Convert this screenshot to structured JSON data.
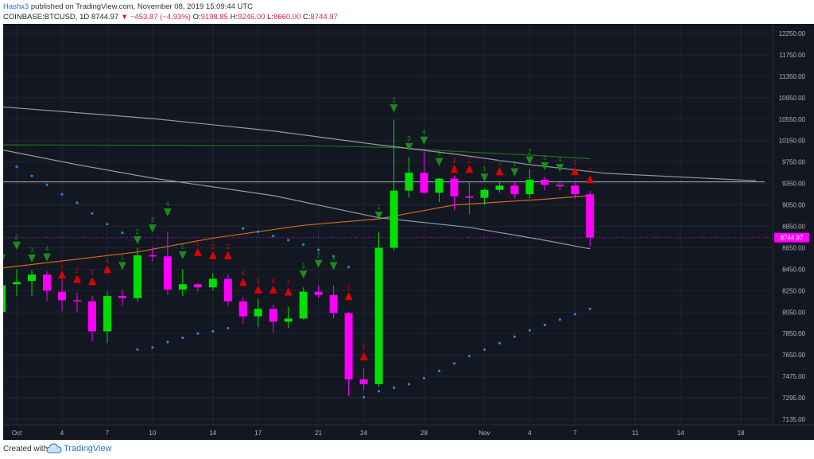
{
  "header": {
    "author": "Hashx3",
    "published_text": "published on TradingView.com, November 08, 2019 15:09:44 UTC",
    "symbol": "COINBASE:BTCUSD, 1D",
    "last": "8744.97",
    "change": "−453.87 (−4.93%)",
    "open_label": "O:",
    "open": "9198.85",
    "high_label": "H:",
    "high": "9246.00",
    "low_label": "L:",
    "low": "8660.00",
    "close_label": "C:",
    "close": "8744.97"
  },
  "footer": {
    "created_with": "Created with",
    "brand": "TradingView"
  },
  "colors": {
    "background": "#131722",
    "up": "#00e000",
    "down": "#ff00ff",
    "grid": "#1f2430",
    "axis_text": "#b2b5be",
    "signal_up": "#1a8c1a",
    "signal_down": "#e00000",
    "price_tag": "#ff00ff",
    "sar": "#2f7fd8",
    "ma_orange": "#d2691e",
    "ma_green": "#1e6e1e",
    "ma_gray": "#9598a1"
  },
  "chart_data": {
    "type": "candlestick",
    "price_label": "8744.97",
    "y_ticks": [
      12250,
      11750,
      11350,
      10950,
      10550,
      10150,
      9750,
      9350,
      9050,
      8850,
      8650,
      8450,
      8250,
      8050,
      7850,
      7650,
      7475,
      7295,
      7135
    ],
    "y_tick_labels": [
      "12250.00",
      "11750.00",
      "11350.00",
      "10950.00",
      "10550.00",
      "10150.00",
      "9750.00",
      "9350.00",
      "9050.00",
      "8850.00",
      "8650.00",
      "8450.00",
      "8250.00",
      "8050.00",
      "7850.00",
      "7650.00",
      "7475.00",
      "7295.00",
      "7135.00"
    ],
    "x_ticks": [
      {
        "day": 1,
        "label": "Oct"
      },
      {
        "day": 4,
        "label": "4"
      },
      {
        "day": 7,
        "label": "7"
      },
      {
        "day": 10,
        "label": "10"
      },
      {
        "day": 14,
        "label": "14"
      },
      {
        "day": 17,
        "label": "17"
      },
      {
        "day": 21,
        "label": "21"
      },
      {
        "day": 24,
        "label": "24"
      },
      {
        "day": 28,
        "label": "28"
      },
      {
        "day": 32,
        "label": "Nov"
      },
      {
        "day": 35,
        "label": "4"
      },
      {
        "day": 38,
        "label": "7"
      },
      {
        "day": 42,
        "label": "11"
      },
      {
        "day": 45,
        "label": "14"
      },
      {
        "day": 49,
        "label": "18"
      }
    ],
    "x_range": [
      0.1,
      51.0
    ],
    "candles": [
      {
        "day": 0,
        "o": 8050,
        "h": 8350,
        "l": 7700,
        "c": 8300
      },
      {
        "day": 1,
        "o": 8310,
        "h": 8450,
        "l": 8200,
        "c": 8330
      },
      {
        "day": 2,
        "o": 8340,
        "h": 8440,
        "l": 8200,
        "c": 8400
      },
      {
        "day": 3,
        "o": 8400,
        "h": 8430,
        "l": 8150,
        "c": 8250
      },
      {
        "day": 4,
        "o": 8240,
        "h": 8360,
        "l": 8060,
        "c": 8160
      },
      {
        "day": 5,
        "o": 8160,
        "h": 8230,
        "l": 8050,
        "c": 8150
      },
      {
        "day": 6,
        "o": 8150,
        "h": 8200,
        "l": 7780,
        "c": 7870
      },
      {
        "day": 7,
        "o": 7870,
        "h": 8240,
        "l": 7760,
        "c": 8200
      },
      {
        "day": 8,
        "o": 8200,
        "h": 8250,
        "l": 8110,
        "c": 8180
      },
      {
        "day": 9,
        "o": 8180,
        "h": 8650,
        "l": 8150,
        "c": 8580
      },
      {
        "day": 10,
        "o": 8580,
        "h": 8660,
        "l": 8520,
        "c": 8570
      },
      {
        "day": 11,
        "o": 8570,
        "h": 8800,
        "l": 8210,
        "c": 8260
      },
      {
        "day": 12,
        "o": 8260,
        "h": 8450,
        "l": 8200,
        "c": 8310
      },
      {
        "day": 13,
        "o": 8310,
        "h": 8320,
        "l": 8240,
        "c": 8280
      },
      {
        "day": 14,
        "o": 8280,
        "h": 8410,
        "l": 8250,
        "c": 8360
      },
      {
        "day": 15,
        "o": 8360,
        "h": 8400,
        "l": 8110,
        "c": 8150
      },
      {
        "day": 16,
        "o": 8150,
        "h": 8190,
        "l": 7940,
        "c": 8010
      },
      {
        "day": 17,
        "o": 8010,
        "h": 8170,
        "l": 7910,
        "c": 8080
      },
      {
        "day": 18,
        "o": 8080,
        "h": 8120,
        "l": 7860,
        "c": 7960
      },
      {
        "day": 19,
        "o": 7960,
        "h": 8100,
        "l": 7900,
        "c": 7990
      },
      {
        "day": 20,
        "o": 7990,
        "h": 8280,
        "l": 7980,
        "c": 8240
      },
      {
        "day": 21,
        "o": 8240,
        "h": 8300,
        "l": 8180,
        "c": 8210
      },
      {
        "day": 22,
        "o": 8210,
        "h": 8300,
        "l": 7990,
        "c": 8040
      },
      {
        "day": 23,
        "o": 8040,
        "h": 8050,
        "l": 7310,
        "c": 7450
      },
      {
        "day": 24,
        "o": 7450,
        "h": 7540,
        "l": 7360,
        "c": 7410
      },
      {
        "day": 25,
        "o": 7410,
        "h": 8800,
        "l": 7390,
        "c": 8650
      },
      {
        "day": 26,
        "o": 8650,
        "h": 10540,
        "l": 8620,
        "c": 9250
      },
      {
        "day": 27,
        "o": 9250,
        "h": 9850,
        "l": 9150,
        "c": 9550
      },
      {
        "day": 28,
        "o": 9550,
        "h": 9950,
        "l": 9200,
        "c": 9220
      },
      {
        "day": 29,
        "o": 9220,
        "h": 9450,
        "l": 9090,
        "c": 9440
      },
      {
        "day": 30,
        "o": 9440,
        "h": 9500,
        "l": 9000,
        "c": 9170
      },
      {
        "day": 31,
        "o": 9170,
        "h": 9390,
        "l": 8960,
        "c": 9150
      },
      {
        "day": 32,
        "o": 9150,
        "h": 9280,
        "l": 9050,
        "c": 9260
      },
      {
        "day": 33,
        "o": 9260,
        "h": 9370,
        "l": 9220,
        "c": 9320
      },
      {
        "day": 34,
        "o": 9320,
        "h": 9380,
        "l": 9140,
        "c": 9200
      },
      {
        "day": 35,
        "o": 9200,
        "h": 9620,
        "l": 9140,
        "c": 9420
      },
      {
        "day": 36,
        "o": 9420,
        "h": 9480,
        "l": 9250,
        "c": 9330
      },
      {
        "day": 37,
        "o": 9330,
        "h": 9370,
        "l": 9260,
        "c": 9310
      },
      {
        "day": 38,
        "o": 9320,
        "h": 9400,
        "l": 9130,
        "c": 9200
      },
      {
        "day": 39,
        "o": 9198.85,
        "h": 9246,
        "l": 8660,
        "c": 8744.97
      }
    ],
    "signals": [
      {
        "day": 0,
        "dir": "down",
        "price": 8550,
        "label": "1"
      },
      {
        "day": 1,
        "dir": "down",
        "price": 8670,
        "label": "2"
      },
      {
        "day": 2,
        "dir": "down",
        "price": 8550,
        "label": "3"
      },
      {
        "day": 3,
        "dir": "down",
        "price": 8560,
        "label": "4"
      },
      {
        "day": 4,
        "dir": "up",
        "price": 8400,
        "label": "1"
      },
      {
        "day": 5,
        "dir": "up",
        "price": 8360,
        "label": "2"
      },
      {
        "day": 6,
        "dir": "up",
        "price": 8340,
        "label": "3"
      },
      {
        "day": 7,
        "dir": "up",
        "price": 8450,
        "label": "4"
      },
      {
        "day": 8,
        "dir": "down",
        "price": 8480,
        "label": "1"
      },
      {
        "day": 9,
        "dir": "down",
        "price": 8720,
        "label": "2"
      },
      {
        "day": 10,
        "dir": "down",
        "price": 8830,
        "label": "3"
      },
      {
        "day": 11,
        "dir": "down",
        "price": 8980,
        "label": "4"
      },
      {
        "day": 12,
        "dir": "down",
        "price": 8580,
        "label": "5"
      },
      {
        "day": 13,
        "dir": "up",
        "price": 8610,
        "label": "1"
      },
      {
        "day": 14,
        "dir": "up",
        "price": 8580,
        "label": "2"
      },
      {
        "day": 15,
        "dir": "up",
        "price": 8580,
        "label": "3"
      },
      {
        "day": 16,
        "dir": "up",
        "price": 8330,
        "label": "4"
      },
      {
        "day": 17,
        "dir": "up",
        "price": 8260,
        "label": "5"
      },
      {
        "day": 18,
        "dir": "up",
        "price": 8260,
        "label": "6"
      },
      {
        "day": 19,
        "dir": "up",
        "price": 8240,
        "label": "7"
      },
      {
        "day": 20,
        "dir": "down",
        "price": 8400,
        "label": "1"
      },
      {
        "day": 21,
        "dir": "down",
        "price": 8500,
        "label": "2"
      },
      {
        "day": 22,
        "dir": "down",
        "price": 8480,
        "label": "3"
      },
      {
        "day": 23,
        "dir": "up",
        "price": 8200,
        "label": "1"
      },
      {
        "day": 24,
        "dir": "up",
        "price": 7640,
        "label": "2"
      },
      {
        "day": 25,
        "dir": "down",
        "price": 8950,
        "label": "1"
      },
      {
        "day": 26,
        "dir": "down",
        "price": 10750,
        "label": "2"
      },
      {
        "day": 27,
        "dir": "down",
        "price": 10030,
        "label": "3"
      },
      {
        "day": 28,
        "dir": "down",
        "price": 10150,
        "label": "4"
      },
      {
        "day": 29,
        "dir": "down",
        "price": 9750,
        "label": "5"
      },
      {
        "day": 30,
        "dir": "up",
        "price": 9620,
        "label": "1"
      },
      {
        "day": 31,
        "dir": "up",
        "price": 9620,
        "label": "2"
      },
      {
        "day": 32,
        "dir": "down",
        "price": 9460,
        "label": "1"
      },
      {
        "day": 33,
        "dir": "up",
        "price": 9580,
        "label": "1"
      },
      {
        "day": 34,
        "dir": "down",
        "price": 9560,
        "label": "1"
      },
      {
        "day": 35,
        "dir": "down",
        "price": 9780,
        "label": "2"
      },
      {
        "day": 36,
        "dir": "down",
        "price": 9670,
        "label": "3"
      },
      {
        "day": 37,
        "dir": "down",
        "price": 9640,
        "label": "4"
      },
      {
        "day": 38,
        "dir": "up",
        "price": 9580,
        "label": "1"
      },
      {
        "day": 39,
        "dir": "up",
        "price": 9430,
        "label": "2"
      }
    ],
    "sar": [
      {
        "day": 0,
        "price": 9830
      },
      {
        "day": 1,
        "price": 9660
      },
      {
        "day": 2,
        "price": 9490
      },
      {
        "day": 3,
        "price": 9330
      },
      {
        "day": 4,
        "price": 9200
      },
      {
        "day": 5,
        "price": 9080
      },
      {
        "day": 6,
        "price": 8970
      },
      {
        "day": 7,
        "price": 8870
      },
      {
        "day": 8,
        "price": 8790
      },
      {
        "day": 9,
        "price": 7700
      },
      {
        "day": 10,
        "price": 7720
      },
      {
        "day": 11,
        "price": 7770
      },
      {
        "day": 12,
        "price": 7810
      },
      {
        "day": 13,
        "price": 7850
      },
      {
        "day": 14,
        "price": 7870
      },
      {
        "day": 15,
        "price": 7900
      },
      {
        "day": 16,
        "price": 8830
      },
      {
        "day": 17,
        "price": 8800
      },
      {
        "day": 18,
        "price": 8760
      },
      {
        "day": 19,
        "price": 8720
      },
      {
        "day": 20,
        "price": 8680
      },
      {
        "day": 21,
        "price": 8630
      },
      {
        "day": 22,
        "price": 8570
      },
      {
        "day": 23,
        "price": 8470
      },
      {
        "day": 24,
        "price": 7300
      },
      {
        "day": 25,
        "price": 7350
      },
      {
        "day": 26,
        "price": 7380
      },
      {
        "day": 27,
        "price": 7410
      },
      {
        "day": 28,
        "price": 7460
      },
      {
        "day": 29,
        "price": 7520
      },
      {
        "day": 30,
        "price": 7580
      },
      {
        "day": 31,
        "price": 7640
      },
      {
        "day": 32,
        "price": 7700
      },
      {
        "day": 33,
        "price": 7760
      },
      {
        "day": 34,
        "price": 7820
      },
      {
        "day": 35,
        "price": 7880
      },
      {
        "day": 36,
        "price": 7930
      },
      {
        "day": 37,
        "price": 7980
      },
      {
        "day": 38,
        "price": 8030
      },
      {
        "day": 39,
        "price": 8080
      }
    ],
    "moving_averages": [
      {
        "color": "orange",
        "points": [
          [
            0,
            8460
          ],
          [
            9,
            8610
          ],
          [
            14,
            8740
          ],
          [
            20,
            8860
          ],
          [
            25,
            8920
          ],
          [
            30,
            9050
          ],
          [
            36,
            9130
          ],
          [
            39,
            9180
          ]
        ]
      },
      {
        "color": "green",
        "points": [
          [
            0,
            10070
          ],
          [
            14,
            10060
          ],
          [
            20,
            10060
          ],
          [
            26,
            10020
          ],
          [
            30,
            9950
          ],
          [
            35,
            9880
          ],
          [
            39,
            9810
          ]
        ]
      },
      {
        "color": "gray",
        "points": [
          [
            0,
            10780
          ],
          [
            10,
            10560
          ],
          [
            18,
            10330
          ],
          [
            25,
            10070
          ],
          [
            30,
            9900
          ],
          [
            35,
            9700
          ],
          [
            40,
            9540
          ],
          [
            50,
            9400
          ]
        ]
      },
      {
        "color": "gray",
        "points": [
          [
            0,
            9980
          ],
          [
            5,
            9700
          ],
          [
            10,
            9450
          ],
          [
            18,
            9180
          ],
          [
            25,
            8930
          ],
          [
            31,
            8840
          ],
          [
            36,
            8720
          ],
          [
            39,
            8640
          ]
        ]
      }
    ],
    "horizontal_line": 9380,
    "price_line": 8744.97
  }
}
